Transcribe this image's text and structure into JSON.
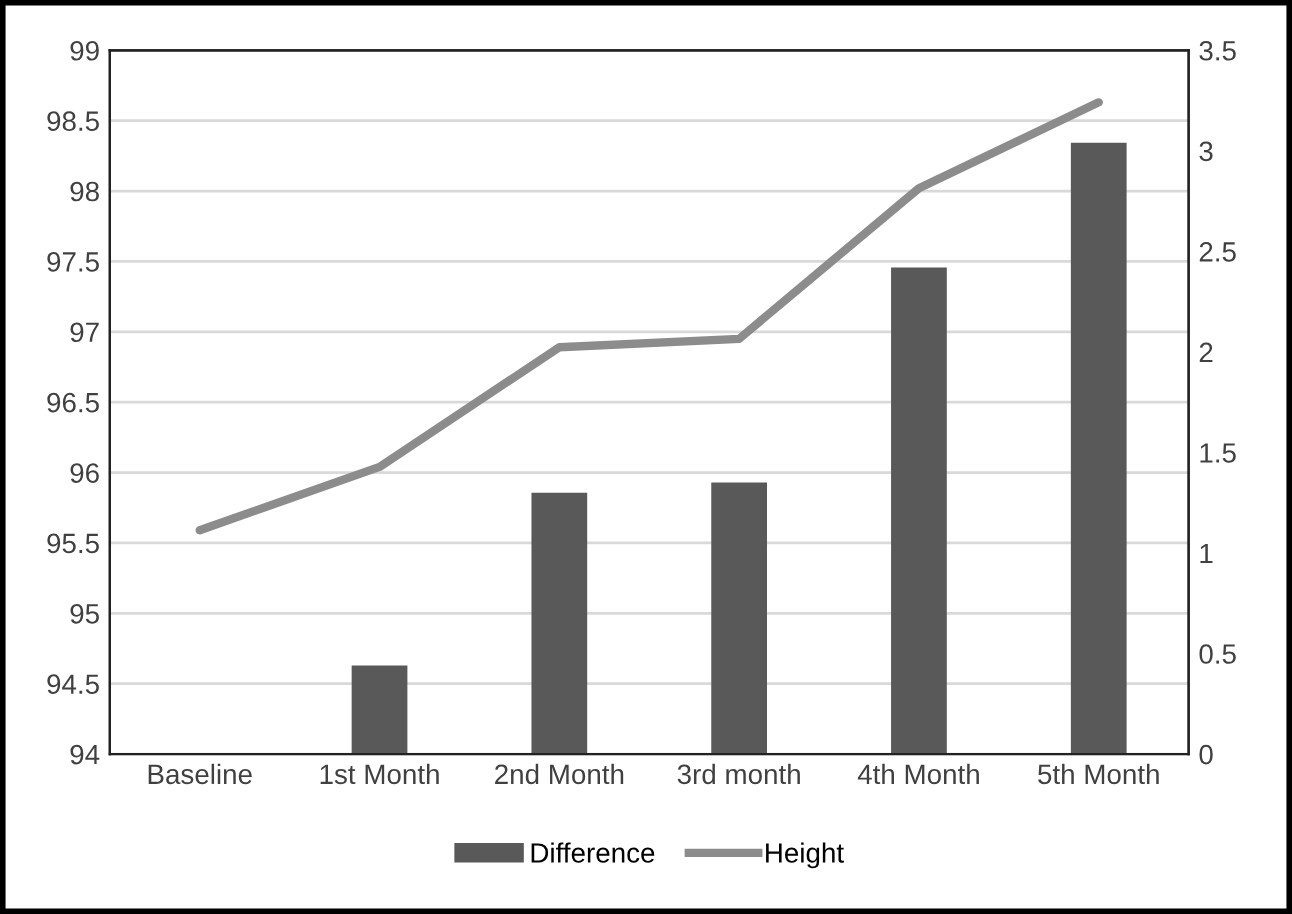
{
  "chart_data": {
    "type": "bar",
    "categories": [
      "Baseline",
      "1st Month",
      "2nd Month",
      "3rd month",
      "4th Month",
      "5th Month"
    ],
    "series": [
      {
        "name": "Difference",
        "axis": "y2",
        "color": "#595959",
        "values": [
          0,
          0.44,
          1.3,
          1.35,
          2.42,
          3.04
        ]
      },
      {
        "name": "Height",
        "type": "line",
        "axis": "y",
        "color": "#8c8c8c",
        "values": [
          95.59,
          96.04,
          96.89,
          96.95,
          98.02,
          98.63
        ]
      }
    ],
    "ylim": [
      94,
      99
    ],
    "yticks": [
      94,
      94.5,
      95,
      95.5,
      96,
      96.5,
      97,
      97.5,
      98,
      98.5,
      99
    ],
    "y2lim": [
      0,
      3.5
    ],
    "y2ticks": [
      0,
      0.5,
      1,
      1.5,
      2,
      2.5,
      3,
      3.5
    ],
    "grid": "y",
    "legend": "bottom",
    "marker": "none",
    "line_style": "solid"
  }
}
